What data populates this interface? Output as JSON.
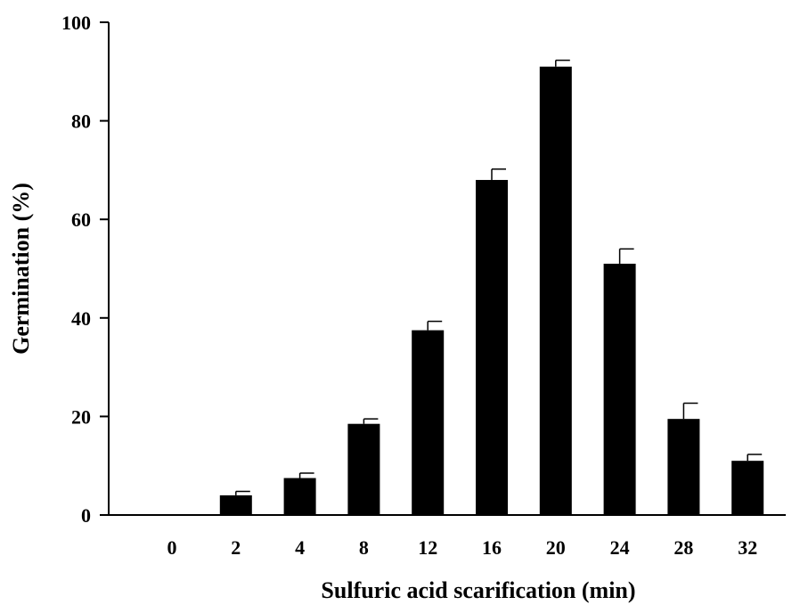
{
  "chart_data": {
    "type": "bar",
    "title": "",
    "xlabel": "Sulfuric acid scarification (min)",
    "ylabel": "Germination (%)",
    "categories": [
      "0",
      "2",
      "4",
      "8",
      "12",
      "16",
      "20",
      "24",
      "28",
      "32"
    ],
    "values": [
      0,
      4,
      7.5,
      18.5,
      37.5,
      68,
      91,
      51,
      19.5,
      11
    ],
    "errors": [
      0,
      0.8,
      1.0,
      1.0,
      1.8,
      2.2,
      1.3,
      3.0,
      3.2,
      1.3
    ],
    "ylim": [
      0,
      100
    ],
    "yticks": [
      "0",
      "20",
      "40",
      "60",
      "80",
      "100"
    ],
    "grid": false,
    "bar_color": "#000000"
  }
}
